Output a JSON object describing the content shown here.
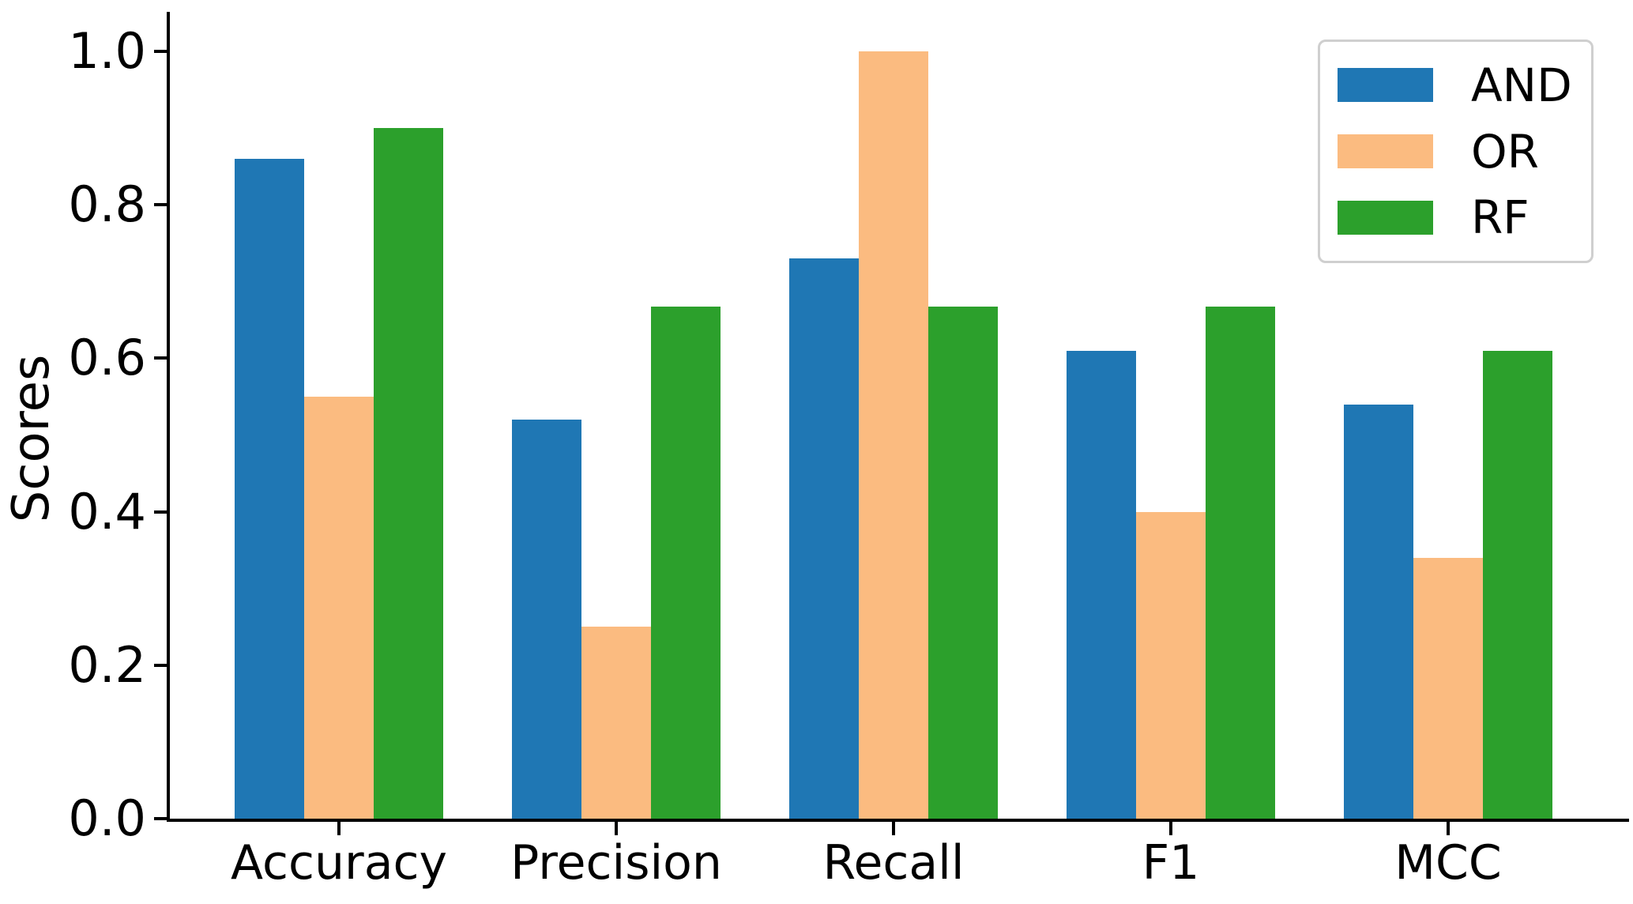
{
  "chart_data": {
    "type": "bar",
    "title": "",
    "xlabel": "",
    "ylabel": "Scores",
    "categories": [
      "Accuracy",
      "Precision",
      "Recall",
      "F1",
      "MCC"
    ],
    "series": [
      {
        "name": "AND",
        "color": "#1f77b4",
        "values": [
          0.86,
          0.52,
          0.73,
          0.61,
          0.54
        ]
      },
      {
        "name": "OR",
        "color": "#fbbb80",
        "values": [
          0.55,
          0.25,
          1.0,
          0.4,
          0.34
        ]
      },
      {
        "name": "RF",
        "color": "#2ca02c",
        "values": [
          0.9,
          0.667,
          0.667,
          0.667,
          0.61
        ]
      }
    ],
    "ylim": [
      0.0,
      1.05
    ],
    "yticks": [
      0.0,
      0.2,
      0.4,
      0.6,
      0.8,
      1.0
    ],
    "ytick_labels": [
      "0.0",
      "0.2",
      "0.4",
      "0.6",
      "0.8",
      "1.0"
    ],
    "grid": false,
    "legend_position": "upper right",
    "axis_color": "#000000",
    "background_color": "#ffffff"
  }
}
